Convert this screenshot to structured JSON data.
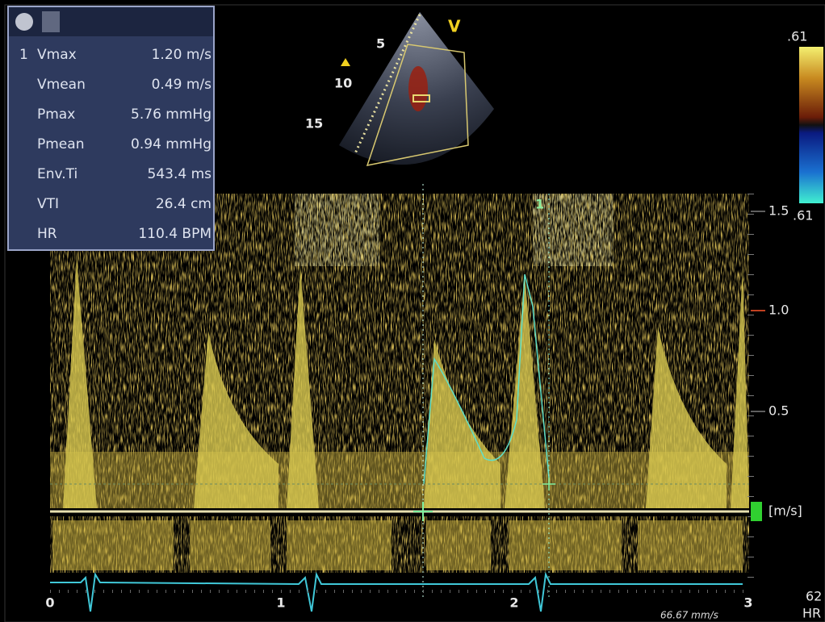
{
  "panel": {
    "index": "1",
    "rows": [
      {
        "label": "Vmax",
        "value": "1.20 m/s"
      },
      {
        "label": "Vmean",
        "value": "0.49 m/s"
      },
      {
        "label": "Pmax",
        "value": "5.76 mmHg"
      },
      {
        "label": "Pmean",
        "value": "0.94 mmHg"
      },
      {
        "label": "Env.Ti",
        "value": "543.4 ms"
      },
      {
        "label": "VTI",
        "value": "26.4 cm"
      },
      {
        "label": "HR",
        "value": "110.4 BPM"
      }
    ]
  },
  "sector": {
    "depth_labels": [
      "5",
      "10",
      "15"
    ],
    "marker": "V"
  },
  "color_scale": {
    "top": ".61",
    "bottom": ".61"
  },
  "velocity_scale": {
    "labels": [
      "1.5",
      "1.0",
      "0.5"
    ],
    "unit": "[m/s]"
  },
  "cursor_label": "1",
  "time_axis": {
    "labels": [
      "0",
      "1",
      "2",
      "3"
    ],
    "sweep": "66.67 mm/s"
  },
  "hr": {
    "value": "62",
    "label": "HR"
  }
}
